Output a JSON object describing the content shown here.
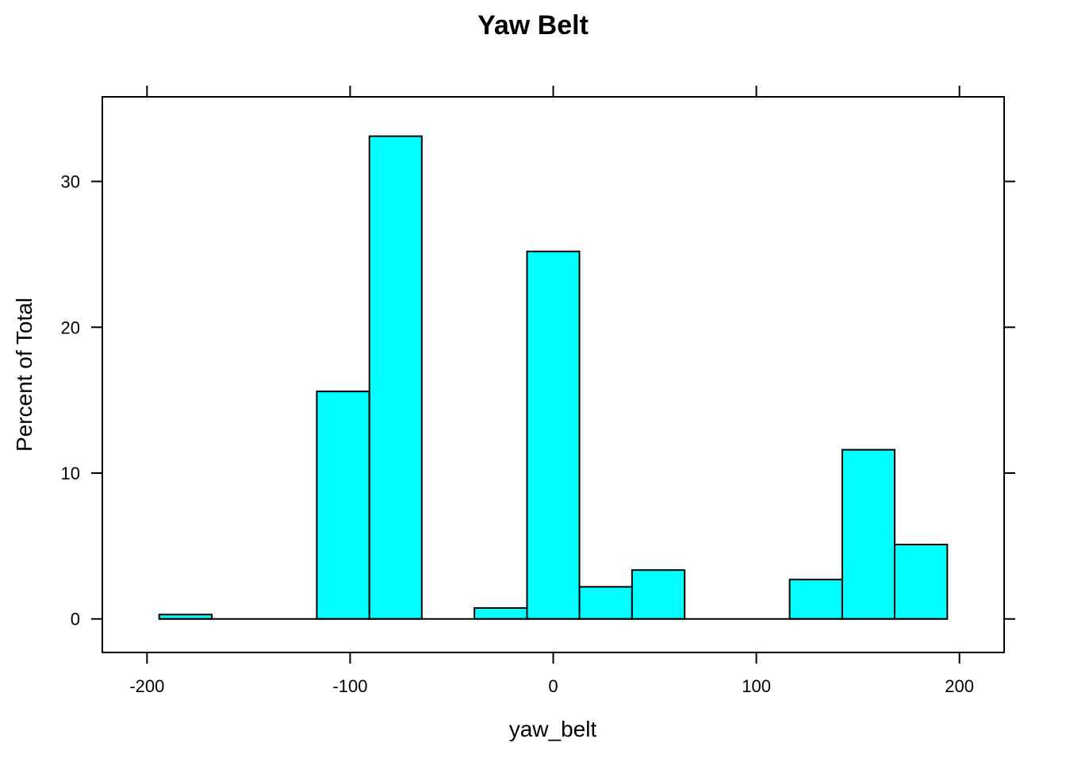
{
  "chart_data": {
    "type": "bar",
    "title": "Yaw Belt",
    "xlabel": "yaw_belt",
    "ylabel": "Percent of Total",
    "xlim": [
      -222,
      222
    ],
    "ylim": [
      -2.3,
      35.8
    ],
    "x_ticks": [
      -200,
      -100,
      0,
      100,
      200
    ],
    "y_ticks": [
      0,
      10,
      20,
      30
    ],
    "x_tick_labels": [
      "-200",
      "-100",
      "0",
      "100",
      "200"
    ],
    "y_tick_labels": [
      "0",
      "10",
      "20",
      "30"
    ],
    "bin_range": [
      -194,
      194
    ],
    "bins": [
      {
        "x0": -194.0,
        "x1": -168.1,
        "value": 0.3
      },
      {
        "x0": -168.1,
        "x1": -142.3,
        "value": 0
      },
      {
        "x0": -142.3,
        "x1": -116.4,
        "value": 0
      },
      {
        "x0": -116.4,
        "x1": -90.5,
        "value": 15.6
      },
      {
        "x0": -90.5,
        "x1": -64.7,
        "value": 33.1
      },
      {
        "x0": -64.7,
        "x1": -38.8,
        "value": 0
      },
      {
        "x0": -38.8,
        "x1": -12.9,
        "value": 0.75
      },
      {
        "x0": -12.9,
        "x1": 12.9,
        "value": 25.2
      },
      {
        "x0": 12.9,
        "x1": 38.8,
        "value": 2.2
      },
      {
        "x0": 38.8,
        "x1": 64.7,
        "value": 3.35
      },
      {
        "x0": 64.7,
        "x1": 90.5,
        "value": 0
      },
      {
        "x0": 90.5,
        "x1": 116.4,
        "value": 0
      },
      {
        "x0": 116.4,
        "x1": 142.3,
        "value": 2.7
      },
      {
        "x0": 142.3,
        "x1": 168.1,
        "value": 11.6
      },
      {
        "x0": 168.1,
        "x1": 194.0,
        "value": 5.1
      }
    ],
    "grid": false,
    "bar_color": "#00FFFF",
    "border_color": "#000000"
  }
}
